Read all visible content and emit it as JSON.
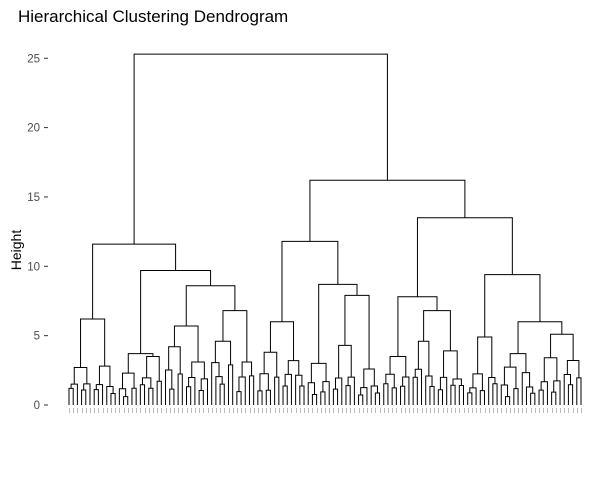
{
  "chart_data": {
    "type": "dendrogram",
    "title": "Hierarchical Clustering Dendrogram",
    "xlabel": "",
    "ylabel": "Height",
    "ylim": [
      0,
      26.5
    ],
    "yticks": [
      0,
      5,
      10,
      15,
      20,
      25
    ],
    "grid": false,
    "legend": "none",
    "line_color": "#000000",
    "leaf_count": 150,
    "merges": [
      {
        "name": "root",
        "height": 25.3,
        "children": [
          "A",
          "B"
        ]
      },
      {
        "name": "A",
        "height": 11.6,
        "children": [
          "A1",
          "A2"
        ]
      },
      {
        "name": "A1",
        "height": 6.2,
        "children": [
          "A1a",
          "A1b"
        ]
      },
      {
        "name": "A2",
        "height": 9.7,
        "children": [
          "A2a",
          "A2b"
        ]
      },
      {
        "name": "A2a",
        "height": 3.7,
        "children": [
          "A2a1",
          "A2a2"
        ]
      },
      {
        "name": "A2b",
        "height": 8.6,
        "children": [
          "A2b1",
          "A2b2"
        ]
      },
      {
        "name": "A2b1",
        "height": 5.7,
        "children": [
          "A2b1a",
          "A2b1b"
        ]
      },
      {
        "name": "A2b2",
        "height": 6.8,
        "children": [
          "A2b2a",
          "A2b2b"
        ]
      },
      {
        "name": "B",
        "height": 16.2,
        "children": [
          "B1",
          "B2"
        ]
      },
      {
        "name": "B1",
        "height": 11.8,
        "children": [
          "B1a",
          "B1b"
        ]
      },
      {
        "name": "B1a",
        "height": 6.0,
        "children": [
          "B1a1",
          "B1a2"
        ]
      },
      {
        "name": "B1b",
        "height": 8.7,
        "children": [
          "B1b1",
          "B1b2"
        ]
      },
      {
        "name": "B1b2",
        "height": 7.9,
        "children": [
          "B1b2a",
          "B1b2b"
        ]
      },
      {
        "name": "B2",
        "height": 13.5,
        "children": [
          "B2a",
          "B2b"
        ]
      },
      {
        "name": "B2a",
        "height": 7.8,
        "children": [
          "B2a1",
          "B2a2"
        ]
      },
      {
        "name": "B2a2",
        "height": 6.8,
        "children": [
          "B2a2a",
          "B2a2b"
        ]
      },
      {
        "name": "B2b",
        "height": 9.4,
        "children": [
          "B2b1",
          "B2b2"
        ]
      },
      {
        "name": "B2b2",
        "height": 6.0,
        "children": [
          "B2b2a",
          "B2b2b"
        ]
      }
    ]
  }
}
